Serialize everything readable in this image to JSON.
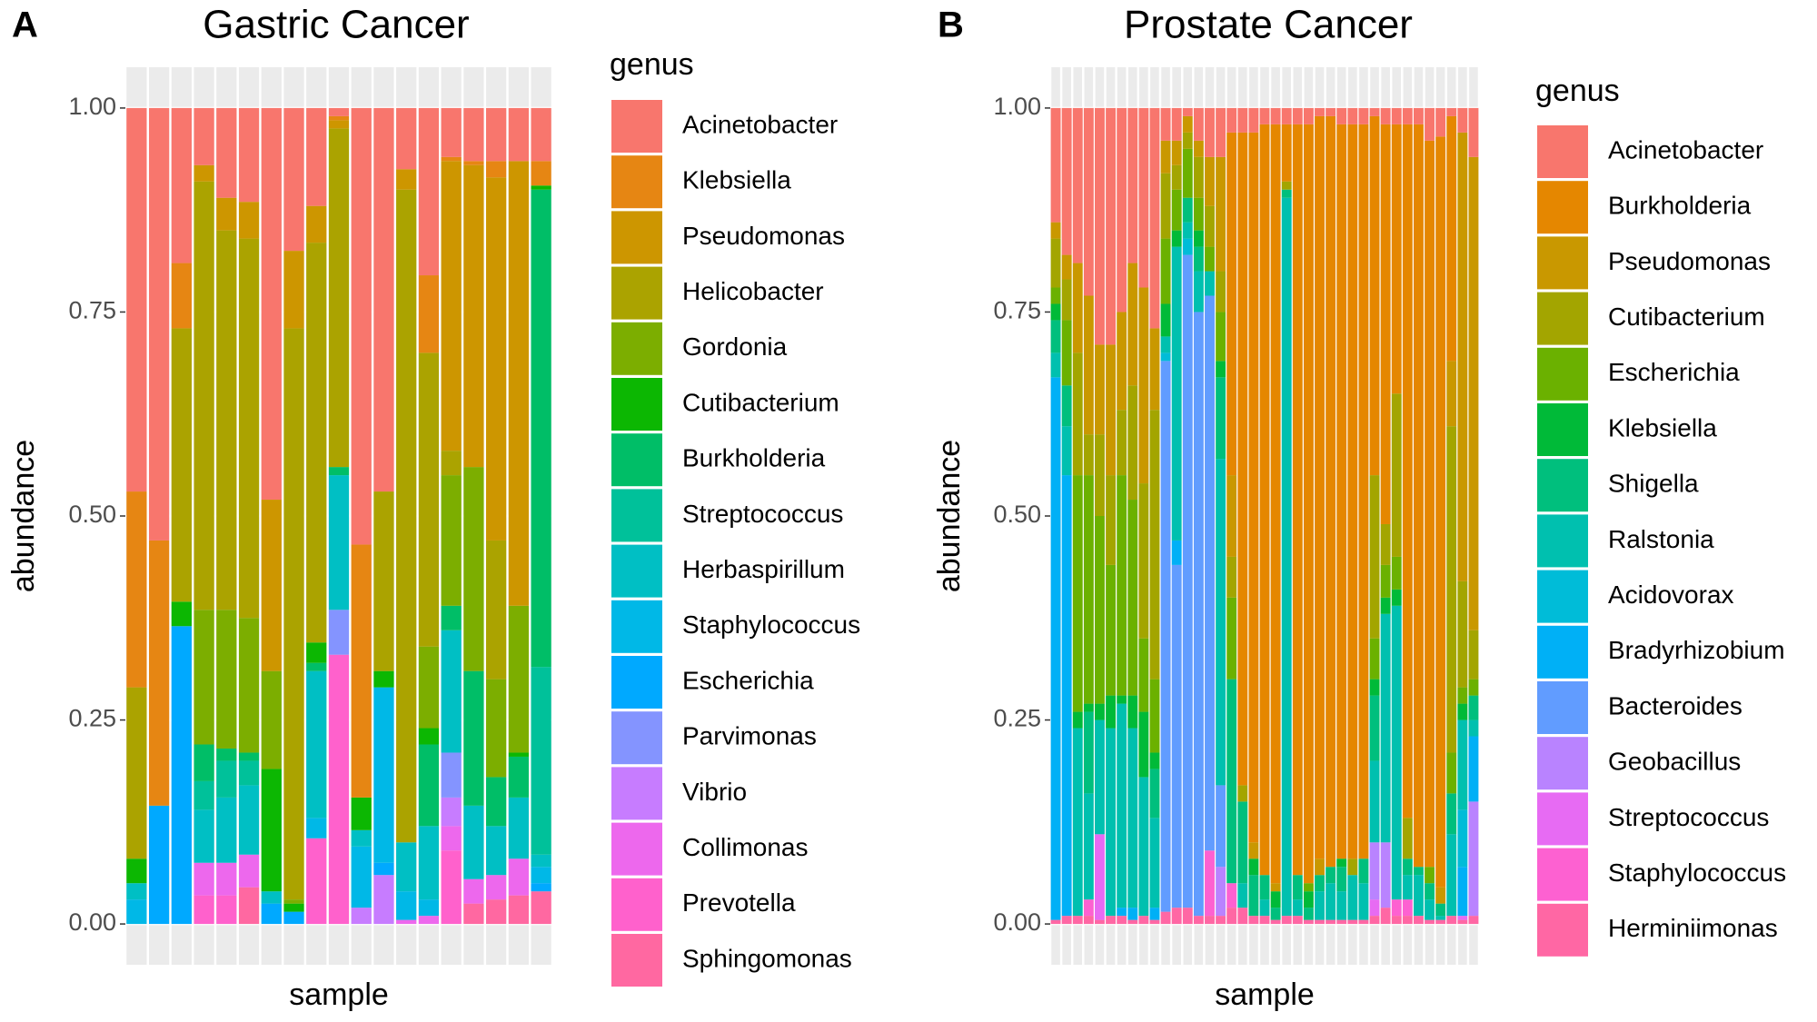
{
  "chart_data": [
    {
      "type": "bar",
      "stacked": true,
      "panel_label": "A",
      "title": "Gastric Cancer",
      "x_label": "sample",
      "y_label": "abundance",
      "legend_title": "genus",
      "legend_position": "right",
      "grid": true,
      "ylim": [
        -0.05,
        1.05
      ],
      "yticks": [
        {
          "value": 0,
          "label": "0.00"
        },
        {
          "value": 0.25,
          "label": "0.25"
        },
        {
          "value": 0.5,
          "label": "0.50"
        },
        {
          "value": 0.75,
          "label": "0.75"
        },
        {
          "value": 1,
          "label": "1.00"
        }
      ],
      "series": [
        {
          "name": "Acinetobacter",
          "color": "#F8766D",
          "values": [
            0.47,
            0.53,
            0.19,
            0.07,
            0.11,
            0.115,
            0.48,
            0.175,
            0.12,
            0.01,
            0.535,
            0.47,
            0.075,
            0.205,
            0.06,
            0.065,
            0.065,
            0.065,
            0.065
          ]
        },
        {
          "name": "Klebsiella",
          "color": "#E68613",
          "values": [
            0.24,
            0.325,
            0.08,
            0,
            0,
            0,
            0,
            0,
            0,
            0.005,
            0.31,
            0,
            0,
            0.095,
            0.005,
            0.005,
            0.02,
            0,
            0.03
          ]
        },
        {
          "name": "Pseudomonas",
          "color": "#CD9600",
          "values": [
            0,
            0,
            0,
            0.02,
            0.04,
            0.045,
            0.21,
            0.095,
            0.045,
            0.01,
            0,
            0,
            0.025,
            0,
            0.355,
            0.37,
            0.445,
            0.545,
            0
          ]
        },
        {
          "name": "Helicobacter",
          "color": "#ABA300",
          "values": [
            0.21,
            0,
            0.335,
            0.525,
            0.465,
            0.465,
            0,
            0.7,
            0.49,
            0.415,
            0,
            0.22,
            0.8,
            0.36,
            0.03,
            0,
            0.17,
            0,
            0
          ]
        },
        {
          "name": "Gordonia",
          "color": "#7CAE00",
          "values": [
            0,
            0,
            0,
            0.165,
            0.17,
            0.165,
            0.12,
            0.005,
            0,
            0,
            0,
            0,
            0,
            0.1,
            0.16,
            0.25,
            0.12,
            0.18,
            0
          ]
        },
        {
          "name": "Cutibacterium",
          "color": "#0CB702",
          "values": [
            0.03,
            0,
            0.03,
            0,
            0,
            0,
            0.15,
            0.01,
            0.025,
            0,
            0.04,
            0.02,
            0,
            0.02,
            0,
            0,
            0,
            0.005,
            0.005
          ]
        },
        {
          "name": "Burkholderia",
          "color": "#00BE67",
          "values": [
            0,
            0,
            0,
            0.045,
            0.015,
            0.01,
            0,
            0,
            0.01,
            0.01,
            0,
            0,
            0,
            0.1,
            0.03,
            0.165,
            0.06,
            0.05,
            0.585
          ]
        },
        {
          "name": "Streptococcus",
          "color": "#00C19A",
          "values": [
            0,
            0,
            0,
            0.035,
            0.045,
            0.03,
            0,
            0,
            0,
            0,
            0,
            0,
            0,
            0,
            0,
            0,
            0,
            0,
            0.23
          ]
        },
        {
          "name": "Herbaspirillum",
          "color": "#00BFC4",
          "values": [
            0.02,
            0,
            0,
            0.065,
            0.08,
            0.085,
            0.015,
            0,
            0.18,
            0.165,
            0.02,
            0,
            0.06,
            0.09,
            0.15,
            0.09,
            0.06,
            0.075,
            0.015
          ]
        },
        {
          "name": "Staphylococcus",
          "color": "#00B8E7",
          "values": [
            0.03,
            0,
            0,
            0,
            0,
            0,
            0,
            0,
            0.025,
            0,
            0.075,
            0.215,
            0.035,
            0.02,
            0,
            0,
            0,
            0,
            0.02
          ]
        },
        {
          "name": "Escherichia",
          "color": "#00A9FF",
          "values": [
            0,
            0.145,
            0.365,
            0,
            0,
            0,
            0.025,
            0.015,
            0,
            0,
            0,
            0.015,
            0,
            0,
            0,
            0,
            0,
            0,
            0.01
          ]
        },
        {
          "name": "Parvimonas",
          "color": "#8494FF",
          "values": [
            0,
            0,
            0,
            0,
            0,
            0,
            0,
            0,
            0,
            0.055,
            0,
            0,
            0,
            0,
            0.055,
            0,
            0,
            0,
            0
          ]
        },
        {
          "name": "Vibrio",
          "color": "#C77CFF",
          "values": [
            0,
            0,
            0,
            0,
            0,
            0,
            0,
            0,
            0,
            0,
            0.02,
            0.06,
            0,
            0,
            0.035,
            0,
            0,
            0,
            0
          ]
        },
        {
          "name": "Collimonas",
          "color": "#ED68ED",
          "values": [
            0,
            0,
            0,
            0.04,
            0.04,
            0.04,
            0,
            0,
            0,
            0,
            0,
            0,
            0.005,
            0.01,
            0.03,
            0.03,
            0.03,
            0.045,
            0
          ]
        },
        {
          "name": "Prevotella",
          "color": "#FF61CC",
          "values": [
            0,
            0,
            0,
            0.035,
            0.035,
            0,
            0,
            0,
            0.105,
            0.33,
            0,
            0,
            0,
            0,
            0.09,
            0,
            0,
            0,
            0
          ]
        },
        {
          "name": "Sphingomonas",
          "color": "#FF68A1",
          "values": [
            0,
            0,
            0,
            0,
            0,
            0.045,
            0,
            0,
            0,
            0,
            0,
            0,
            0,
            0,
            0,
            0.025,
            0.03,
            0.035,
            0.04
          ]
        }
      ]
    },
    {
      "type": "bar",
      "stacked": true,
      "panel_label": "B",
      "title": "Prostate Cancer",
      "x_label": "sample",
      "y_label": "abundance",
      "legend_title": "genus",
      "legend_position": "right",
      "grid": true,
      "ylim": [
        -0.05,
        1.05
      ],
      "yticks": [
        {
          "value": 0,
          "label": "0.00"
        },
        {
          "value": 0.25,
          "label": "0.25"
        },
        {
          "value": 0.5,
          "label": "0.50"
        },
        {
          "value": 0.75,
          "label": "0.75"
        },
        {
          "value": 1,
          "label": "1.00"
        }
      ],
      "series": [
        {
          "name": "Acinetobacter",
          "color": "#F8766D",
          "values": [
            0.14,
            0.18,
            0.19,
            0.23,
            0.29,
            0.29,
            0.25,
            0.19,
            0.22,
            0.27,
            0.04,
            0.04,
            0.01,
            0.04,
            0.06,
            0.06,
            0.03,
            0.03,
            0.03,
            0.02,
            0.02,
            0.02,
            0.02,
            0.02,
            0.01,
            0.01,
            0.02,
            0.02,
            0.02,
            0.01,
            0.02,
            0.02,
            0.02,
            0.02,
            0.04,
            0.035,
            0.01,
            0.03,
            0.06
          ]
        },
        {
          "name": "Burkholderia",
          "color": "#E58700",
          "values": [
            0,
            0,
            0,
            0,
            0,
            0,
            0,
            0,
            0,
            0,
            0,
            0,
            0,
            0,
            0,
            0,
            0.42,
            0.8,
            0.87,
            0.92,
            0.93,
            0.07,
            0.92,
            0.93,
            0.91,
            0.92,
            0.9,
            0.9,
            0.9,
            0.44,
            0.49,
            0.33,
            0.85,
            0.91,
            0.89,
            0.92,
            0.3,
            0,
            0
          ]
        },
        {
          "name": "Pseudomonas",
          "color": "#C99800",
          "values": [
            0.02,
            0.03,
            0.11,
            0.17,
            0.11,
            0.16,
            0.12,
            0.15,
            0.24,
            0.1,
            0.04,
            0.03,
            0.02,
            0.02,
            0.06,
            0.14,
            0.1,
            0,
            0.02,
            0,
            0.01,
            0,
            0,
            0,
            0.02,
            0,
            0,
            0,
            0,
            0,
            0,
            0,
            0,
            0,
            0,
            0.02,
            0.08,
            0.55,
            0.58
          ]
        },
        {
          "name": "Cutibacterium",
          "color": "#A3A500",
          "values": [
            0.06,
            0.05,
            0.15,
            0.05,
            0.1,
            0.11,
            0.08,
            0.14,
            0.19,
            0.33,
            0.08,
            0.03,
            0.02,
            0.05,
            0.05,
            0.05,
            0.05,
            0.02,
            0,
            0,
            0,
            0.01,
            0,
            0,
            0,
            0,
            0,
            0.02,
            0,
            0.2,
            0.05,
            0.2,
            0.05,
            0,
            0,
            0,
            0.4,
            0.13,
            0.06
          ]
        },
        {
          "name": "Escherichia",
          "color": "#6BB100",
          "values": [
            0.02,
            0.08,
            0.29,
            0.28,
            0.23,
            0.16,
            0.27,
            0.24,
            0.09,
            0.09,
            0.08,
            0.05,
            0.06,
            0.04,
            0.03,
            0.06,
            0.1,
            0,
            0,
            0,
            0,
            0,
            0,
            0.01,
            0,
            0,
            0,
            0,
            0,
            0.05,
            0.04,
            0.04,
            0,
            0,
            0.02,
            0,
            0.05,
            0.02,
            0.02
          ]
        },
        {
          "name": "Klebsiella",
          "color": "#00BA38",
          "values": [
            0.02,
            0,
            0.02,
            0.01,
            0.02,
            0.04,
            0.01,
            0.04,
            0.08,
            0.02,
            0.04,
            0.02,
            0,
            0.02,
            0,
            0.02,
            0,
            0,
            0.02,
            0,
            0.02,
            0,
            0,
            0.02,
            0,
            0,
            0.01,
            0,
            0,
            0.02,
            0.02,
            0.02,
            0,
            0,
            0,
            0,
            0,
            0.02,
            0
          ]
        },
        {
          "name": "Shigella",
          "color": "#00BF7D",
          "values": [
            0.04,
            0.05,
            0,
            0.1,
            0,
            0,
            0,
            0,
            0,
            0.06,
            0,
            0,
            0.03,
            0.03,
            0,
            0.1,
            0.25,
            0.1,
            0.05,
            0.03,
            0.015,
            0.01,
            0.03,
            0.015,
            0.02,
            0.02,
            0.03,
            0,
            0.03,
            0.08,
            0,
            0,
            0.02,
            0.01,
            0.02,
            0.015,
            0.05,
            0,
            0.03
          ]
        },
        {
          "name": "Ralstonia",
          "color": "#00C0AF",
          "values": [
            0.03,
            0.06,
            0.23,
            0.13,
            0.14,
            0.23,
            0.25,
            0.22,
            0.17,
            0.11,
            0.02,
            0.36,
            0.02,
            0.05,
            0.03,
            0.4,
            0,
            0.03,
            0,
            0.02,
            0,
            0.88,
            0.02,
            0,
            0.035,
            0.045,
            0.035,
            0.055,
            0.045,
            0.1,
            0.28,
            0.36,
            0.03,
            0.05,
            0.025,
            0.005,
            0.1,
            0.11,
            0.02
          ]
        },
        {
          "name": "Acidovorax",
          "color": "#00BCD8",
          "values": [
            0,
            0,
            0,
            0,
            0,
            0,
            0,
            0,
            0,
            0,
            0.01,
            0,
            0.02,
            0,
            0,
            0,
            0,
            0,
            0,
            0,
            0,
            0,
            0,
            0,
            0,
            0,
            0,
            0,
            0,
            0,
            0,
            0,
            0,
            0,
            0,
            0,
            0,
            0.07,
            0
          ]
        },
        {
          "name": "Bradyrhizobium",
          "color": "#00B0F6",
          "values": [
            0.665,
            0.54,
            0,
            0,
            0,
            0,
            0.01,
            0.015,
            0,
            0.015,
            0,
            0.03,
            0,
            0,
            0,
            0,
            0,
            0,
            0,
            0,
            0,
            0,
            0,
            0,
            0,
            0,
            0,
            0,
            0,
            0,
            0,
            0,
            0,
            0,
            0,
            0,
            0,
            0.06,
            0.08
          ]
        },
        {
          "name": "Bacteroides",
          "color": "#619CFF",
          "values": [
            0,
            0,
            0,
            0,
            0,
            0,
            0,
            0,
            0,
            0,
            0.675,
            0.42,
            0.8,
            0.74,
            0.68,
            0.1,
            0,
            0,
            0,
            0,
            0,
            0,
            0,
            0,
            0,
            0,
            0,
            0,
            0,
            0,
            0,
            0,
            0,
            0,
            0,
            0,
            0,
            0,
            0
          ]
        },
        {
          "name": "Geobacillus",
          "color": "#B983FF",
          "values": [
            0,
            0,
            0,
            0,
            0,
            0,
            0,
            0,
            0,
            0,
            0,
            0,
            0,
            0,
            0,
            0.06,
            0,
            0,
            0,
            0,
            0,
            0,
            0,
            0,
            0,
            0,
            0,
            0,
            0,
            0.07,
            0.08,
            0,
            0,
            0,
            0,
            0,
            0,
            0,
            0.14
          ]
        },
        {
          "name": "Streptococcus",
          "color": "#E76BF3",
          "values": [
            0,
            0,
            0,
            0,
            0.105,
            0,
            0,
            0,
            0,
            0,
            0,
            0,
            0,
            0,
            0,
            0,
            0,
            0,
            0,
            0,
            0,
            0,
            0,
            0,
            0,
            0,
            0,
            0,
            0,
            0.02,
            0,
            0,
            0,
            0,
            0,
            0,
            0,
            0.005,
            0
          ]
        },
        {
          "name": "Staphylococcus",
          "color": "#FD61D1",
          "values": [
            0,
            0,
            0,
            0.02,
            0,
            0,
            0,
            0,
            0,
            0,
            0,
            0,
            0,
            0,
            0.08,
            0,
            0.03,
            0,
            0,
            0,
            0,
            0,
            0,
            0,
            0,
            0,
            0,
            0,
            0,
            0,
            0,
            0.02,
            0.02,
            0,
            0,
            0,
            0,
            0,
            0
          ]
        },
        {
          "name": "Herminiimonas",
          "color": "#FF67A4",
          "values": [
            0.005,
            0.01,
            0.01,
            0.01,
            0.005,
            0.01,
            0.01,
            0.005,
            0.01,
            0.005,
            0.015,
            0.02,
            0.02,
            0.01,
            0.01,
            0.01,
            0.02,
            0.02,
            0.01,
            0.01,
            0.005,
            0.01,
            0.01,
            0.005,
            0.005,
            0.005,
            0.005,
            0.005,
            0.005,
            0.01,
            0.02,
            0.01,
            0.01,
            0.01,
            0.005,
            0.005,
            0.01,
            0.005,
            0.01
          ]
        }
      ]
    }
  ]
}
